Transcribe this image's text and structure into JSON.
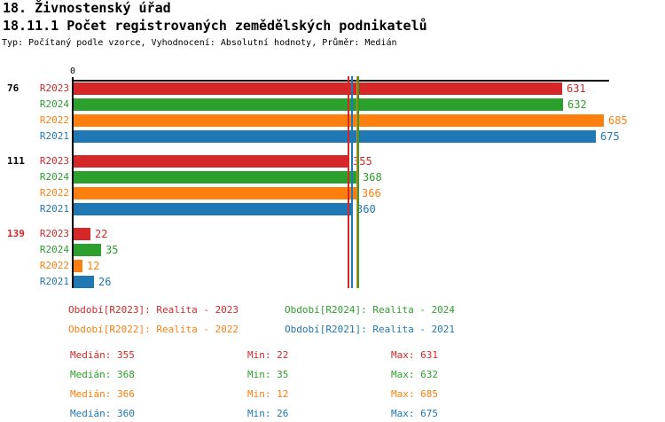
{
  "header": {
    "title": "18. Živnostenský úřad",
    "subtitle": "18.11.1 Počet registrovaných zemědělských podnikatelů",
    "meta": "Typ: Počítaný podle vzorce, Vyhodnocení: Absolutní hodnoty, Průměr: Medián"
  },
  "chart_data": {
    "type": "bar",
    "orientation": "horizontal",
    "title": "18.11.1 Počet registrovaných zemědělských podnikatelů",
    "axis_zero_label": "0",
    "xlim": [
      0,
      685
    ],
    "grid": false,
    "series": [
      "R2023",
      "R2024",
      "R2022",
      "R2021"
    ],
    "series_colors": [
      "#d62728",
      "#2ca02c",
      "#ff7f0e",
      "#1f77b4"
    ],
    "groups": [
      {
        "label": "76",
        "label_color": "#000000",
        "values": [
          631,
          632,
          685,
          675
        ]
      },
      {
        "label": "111",
        "label_color": "#000000",
        "values": [
          355,
          368,
          366,
          360
        ]
      },
      {
        "label": "139",
        "label_color": "#d62728",
        "values": [
          22,
          35,
          12,
          26
        ]
      }
    ],
    "median_lines": [
      {
        "series": "R2023",
        "value": 355,
        "color": "#d62728"
      },
      {
        "series": "R2021",
        "value": 360,
        "color": "#1f77b4"
      },
      {
        "series": "R2022",
        "value": 366,
        "color": "#ff7f0e"
      },
      {
        "series": "R2024",
        "value": 368,
        "color": "#2ca02c"
      }
    ]
  },
  "legend": {
    "items": [
      {
        "text": "Období[R2023]: Realita - 2023",
        "color": "#d62728"
      },
      {
        "text": "Období[R2024]: Realita - 2024",
        "color": "#2ca02c"
      },
      {
        "text": "Období[R2022]: Realita - 2022",
        "color": "#ff7f0e"
      },
      {
        "text": "Období[R2021]: Realita - 2021",
        "color": "#1f77b4"
      }
    ]
  },
  "stats": {
    "labels": {
      "median": "Medián",
      "min": "Min",
      "max": "Max"
    },
    "rows": [
      {
        "median": 355,
        "min": 22,
        "max": 631,
        "color": "#d62728"
      },
      {
        "median": 368,
        "min": 35,
        "max": 632,
        "color": "#2ca02c"
      },
      {
        "median": 366,
        "min": 12,
        "max": 685,
        "color": "#ff7f0e"
      },
      {
        "median": 360,
        "min": 26,
        "max": 675,
        "color": "#1f77b4"
      }
    ]
  }
}
